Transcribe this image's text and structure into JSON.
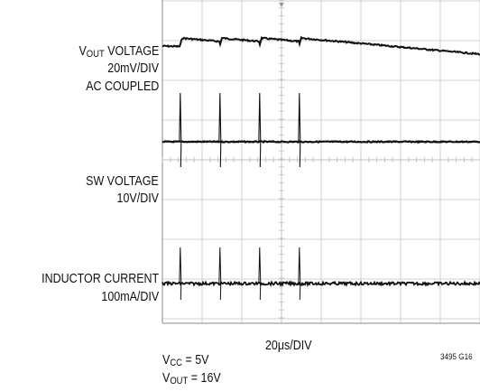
{
  "chart_data": {
    "type": "line",
    "title": "",
    "grid": true,
    "traces": [
      {
        "name_main": "V",
        "name_sub": "OUT",
        "name_rest": " VOLTAGE",
        "scale": "20mV/DIV",
        "note": "AC COUPLED"
      },
      {
        "name": "SW VOLTAGE",
        "scale": "10V/DIV"
      },
      {
        "name": "INDUCTOR CURRENT",
        "scale": "100mA/DIV"
      }
    ],
    "timebase": "20μs/DIV",
    "switching_event_times_div": [
      0.45,
      1.45,
      2.45,
      3.45
    ],
    "conditions": [
      {
        "main": "V",
        "sub": "CC",
        "rest": " = 5V"
      },
      {
        "main": "V",
        "sub": "OUT",
        "rest": " = 16V"
      }
    ],
    "figure_id": "3495 G16"
  }
}
